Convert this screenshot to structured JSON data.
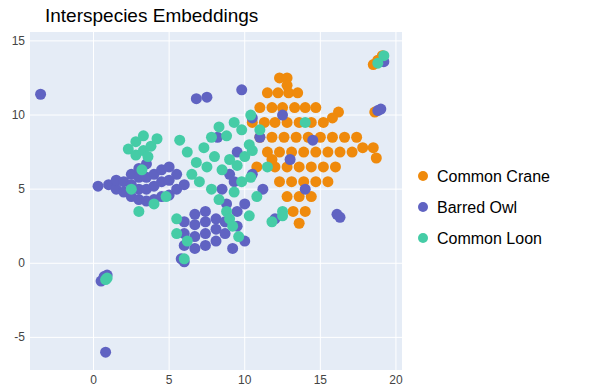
{
  "chart_data": {
    "type": "scatter",
    "title": "Interspecies Embeddings",
    "xlim": [
      -4.2,
      20.4
    ],
    "ylim": [
      -7.2,
      15.6
    ],
    "xticks": [
      0,
      5,
      10,
      15,
      20
    ],
    "yticks": [
      -5,
      0,
      5,
      10,
      15
    ],
    "grid": true,
    "legend": "right",
    "marker": "circle",
    "series": [
      {
        "name": "Common Crane",
        "color": "#ef8a0c",
        "x": [
          12.3,
          12.8,
          11.5,
          12.2,
          12.9,
          13.5,
          11,
          11.8,
          12.5,
          13.3,
          14,
          14.7,
          10.5,
          11.3,
          12,
          12.8,
          13.6,
          14.4,
          15.2,
          11,
          11.8,
          12.6,
          13.4,
          14.2,
          15,
          15.8,
          16.6,
          17.4,
          17.8,
          18.5,
          11.5,
          12.3,
          13.1,
          13.9,
          14.7,
          15.5,
          16.3,
          17.1,
          12,
          12.8,
          13.6,
          14.4,
          15.2,
          16,
          12.3,
          13.1,
          13.9,
          14.7,
          15.5,
          12.8,
          13.6,
          14.4,
          13.2,
          14,
          13.6,
          18.7,
          18.5,
          18.8,
          19.1,
          18.6,
          12.8,
          16.2,
          15.8,
          11.8,
          10.8
        ],
        "values": [
          12.5,
          12.5,
          11.5,
          11.5,
          11.5,
          11.5,
          10.5,
          10.5,
          10.5,
          10.5,
          10.5,
          10.5,
          9.5,
          9.5,
          9.5,
          9.5,
          9.5,
          9.5,
          9.5,
          8.5,
          8.5,
          8.5,
          8.5,
          8.5,
          8.5,
          8.5,
          8.5,
          8.5,
          7.8,
          7.8,
          7.5,
          7.5,
          7.5,
          7.5,
          7.5,
          7.5,
          7.5,
          7.5,
          6.5,
          6.5,
          6.5,
          6.5,
          6.5,
          6.5,
          5.5,
          5.5,
          5.5,
          5.5,
          5.5,
          4.5,
          4.5,
          4.5,
          3.5,
          3.5,
          2.7,
          7.1,
          13.4,
          13.7,
          14.0,
          10.2,
          12.0,
          10.2,
          9.8,
          7.0,
          6.5
        ]
      },
      {
        "name": "Barred Owl",
        "color": "#6063c2",
        "x": [
          0.3,
          1,
          1.5,
          1.5,
          2,
          2,
          2.5,
          2.5,
          2.5,
          3,
          3,
          3,
          3,
          3.5,
          3.5,
          3.5,
          3.5,
          4,
          4,
          4,
          4.5,
          4.5,
          4.5,
          5,
          5,
          5,
          5.5,
          5.5,
          6,
          6,
          6,
          6,
          6.7,
          6.7,
          6.7,
          6.7,
          7.4,
          7.4,
          7.4,
          7.4,
          8.1,
          8.1,
          8.1,
          8.7,
          8.7,
          9.2,
          9.5,
          -3.5,
          0.5,
          0.7,
          0.9,
          0.8,
          5.8,
          6,
          7.5,
          6.8,
          16.1,
          16.3,
          18.8,
          19,
          19.2,
          8.5,
          9,
          9.5,
          10,
          10.5,
          11,
          10.5,
          13,
          14,
          12,
          9.8,
          8.2,
          9.5,
          11.2,
          12.5,
          14.5,
          10,
          9.3,
          8.8
        ],
        "values": [
          5.2,
          5.3,
          5,
          5.6,
          4.8,
          5.5,
          4.5,
          5.3,
          6,
          4.3,
          5,
          5.8,
          6.4,
          4.2,
          5,
          5.8,
          6.7,
          4.3,
          5.2,
          6,
          4.5,
          5.5,
          6.3,
          4.6,
          5.6,
          6.5,
          5,
          6,
          5.3,
          1.2,
          2,
          2.8,
          1,
          1.8,
          2.6,
          3.3,
          1.2,
          2,
          2.8,
          3.5,
          1.5,
          2.3,
          3,
          2,
          2.8,
          1,
          2.5,
          11.4,
          -1.2,
          -0.9,
          -0.8,
          -6,
          0.3,
          0.1,
          11.2,
          11.1,
          3.3,
          3.1,
          10.3,
          10.4,
          13.6,
          5,
          6,
          7.5,
          4,
          6,
          8.5,
          9.8,
          7,
          5,
          3,
          11.7,
          8.5,
          3.5,
          5,
          10,
          8.3,
          1.5,
          5.5,
          4
        ]
      },
      {
        "name": "Common Loon",
        "color": "#45cca6",
        "x": [
          2.3,
          2.8,
          2.8,
          3.3,
          3.3,
          3.8,
          4.2,
          3.6,
          5.7,
          6.2,
          6.8,
          7.3,
          7.8,
          8.3,
          8.8,
          9.3,
          9.8,
          10.3,
          6.5,
          7,
          7.5,
          8,
          8.5,
          9,
          9.5,
          10,
          10.5,
          7.8,
          8.3,
          8.8,
          9.3,
          9.8,
          9.2,
          9.6,
          9,
          10.3,
          10.8,
          10.4,
          11,
          0.9,
          0.8,
          12.5,
          12.5,
          11.8,
          10.4,
          5.5,
          4.8,
          3,
          3.2,
          2.5,
          4,
          5.5,
          6.2,
          19.2,
          18.8,
          6,
          11.5,
          14
        ],
        "values": [
          7.7,
          7.3,
          8.2,
          7.6,
          8.6,
          7.9,
          8.4,
          7.2,
          8.3,
          7.5,
          6.8,
          7.8,
          8.5,
          9.2,
          8.6,
          9.5,
          9,
          8,
          6,
          5.5,
          6.5,
          7.2,
          6.3,
          7,
          6.6,
          7.2,
          7.6,
          5,
          4.3,
          3.5,
          4.8,
          5.5,
          2.5,
          1.8,
          3,
          3.2,
          4.5,
          5.8,
          9,
          -1,
          -1.1,
          3.5,
          3.2,
          2.8,
          10,
          3,
          4.5,
          3.5,
          6.3,
          5,
          4,
          2,
          1.5,
          14,
          13.5,
          0.3,
          6.5,
          9.5
        ]
      }
    ]
  }
}
